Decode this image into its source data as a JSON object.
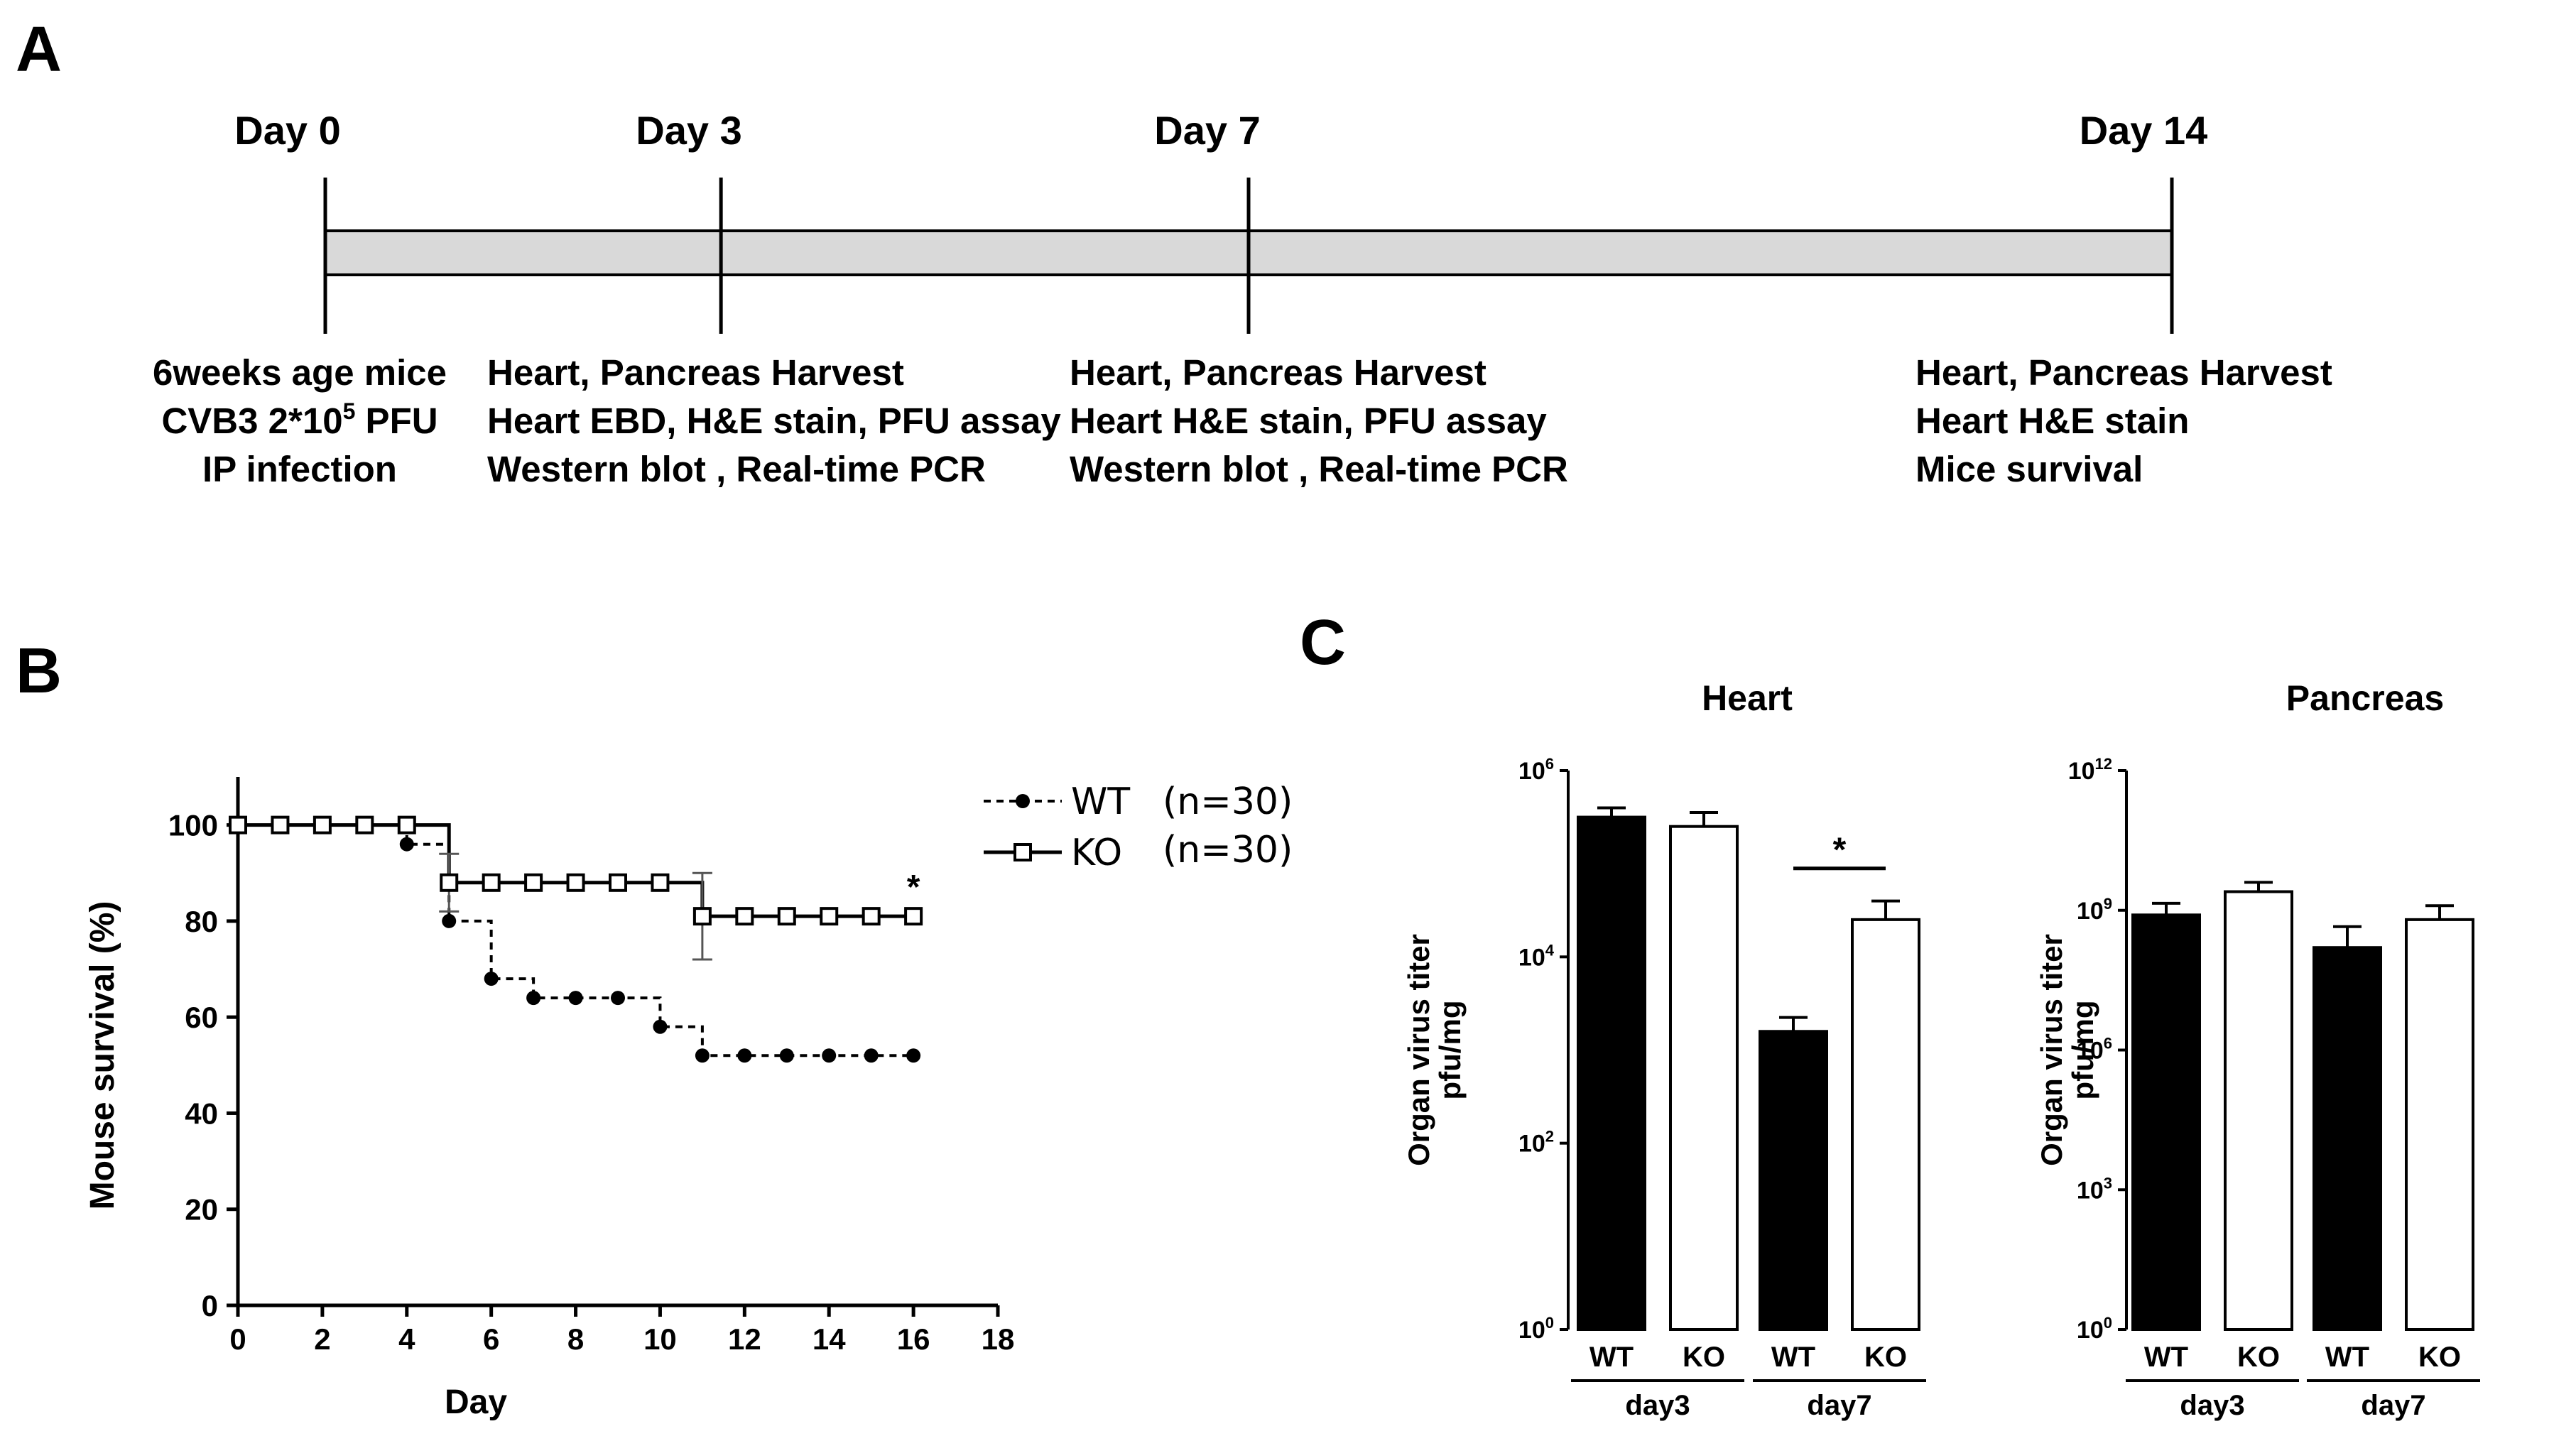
{
  "panels": {
    "a": "A",
    "b": "B",
    "c": "C"
  },
  "timeline": {
    "days": [
      {
        "label": "Day 0",
        "day": 0
      },
      {
        "label": "Day 3",
        "day": 3
      },
      {
        "label": "Day 7",
        "day": 7
      },
      {
        "label": "Day 14",
        "day": 14
      }
    ],
    "notes": [
      {
        "lines": [
          "6weeks age mice",
          "CVB3 2*10",
          "IP infection"
        ],
        "sup": "5",
        "sup_after": " PFU"
      },
      {
        "lines": [
          "Heart, Pancreas Harvest",
          "Heart EBD, H&E stain, PFU assay",
          "Western blot , Real-time PCR"
        ]
      },
      {
        "lines": [
          "Heart, Pancreas Harvest",
          "Heart H&E stain, PFU assay",
          "Western blot , Real-time PCR"
        ]
      },
      {
        "lines": [
          "Heart, Pancreas Harvest",
          "Heart H&E stain",
          "Mice survival"
        ]
      }
    ]
  },
  "chart_data": [
    {
      "type": "line",
      "panel": "B",
      "title": "",
      "xlabel": "Day",
      "ylabel": "Mouse survival (%)",
      "xlim": [
        0,
        18
      ],
      "ylim": [
        0,
        110
      ],
      "xticks": [
        0,
        2,
        4,
        6,
        8,
        10,
        12,
        14,
        16,
        18
      ],
      "yticks": [
        0,
        20,
        40,
        60,
        80,
        100
      ],
      "significance": "*",
      "legend_position": "top-right",
      "series": [
        {
          "name": "WT",
          "legend": "WT",
          "n_label": "(n=30)",
          "style": "dashed-step-filled-circle",
          "x": [
            0,
            1,
            2,
            3,
            4,
            5,
            6,
            7,
            8,
            9,
            10,
            11,
            12,
            13,
            14,
            15,
            16
          ],
          "values": [
            100,
            100,
            100,
            100,
            96,
            80,
            68,
            64,
            64,
            64,
            58,
            52,
            52,
            52,
            52,
            52,
            52
          ]
        },
        {
          "name": "KO",
          "legend": "KO",
          "n_label": "(n=30)",
          "style": "solid-step-open-square",
          "x": [
            0,
            1,
            2,
            3,
            4,
            5,
            6,
            7,
            8,
            9,
            10,
            11,
            12,
            13,
            14,
            15,
            16
          ],
          "values": [
            100,
            100,
            100,
            100,
            100,
            88,
            88,
            88,
            88,
            88,
            88,
            81,
            81,
            81,
            81,
            81,
            81
          ],
          "error_bars": [
            {
              "x": 5,
              "low": 82,
              "high": 94
            },
            {
              "x": 11,
              "low": 72,
              "high": 90
            }
          ]
        }
      ]
    },
    {
      "type": "bar",
      "panel": "C",
      "title": "Heart",
      "ylabel_line1": "Organ virus titer",
      "ylabel_line2": "pfu/mg",
      "yscale": "log10",
      "ylim_exp": [
        0,
        6
      ],
      "ytick_exps": [
        0,
        2,
        4,
        6
      ],
      "ytick_base": "10",
      "categories": [
        "WT",
        "KO",
        "WT",
        "KO"
      ],
      "groups": [
        "day3",
        "day7"
      ],
      "fills": [
        "#000000",
        "#ffffff",
        "#000000",
        "#ffffff"
      ],
      "log_values": [
        5.5,
        5.4,
        3.2,
        4.4
      ],
      "log_errors": [
        0.1,
        0.15,
        0.15,
        0.2
      ],
      "significance": {
        "label": "*",
        "between": [
          2,
          3
        ]
      }
    },
    {
      "type": "bar",
      "panel": "C",
      "title": "Pancreas",
      "ylabel_line1": "Organ virus titer",
      "ylabel_line2": "pfu/mg",
      "yscale": "log10",
      "ylim_exp": [
        0,
        12
      ],
      "ytick_exps": [
        0,
        3,
        6,
        9,
        12
      ],
      "ytick_base": "10",
      "categories": [
        "WT",
        "KO",
        "WT",
        "KO"
      ],
      "groups": [
        "day3",
        "day7"
      ],
      "fills": [
        "#000000",
        "#ffffff",
        "#000000",
        "#ffffff"
      ],
      "log_values": [
        8.9,
        9.4,
        8.2,
        8.8
      ],
      "log_errors": [
        0.25,
        0.2,
        0.45,
        0.3
      ]
    }
  ]
}
